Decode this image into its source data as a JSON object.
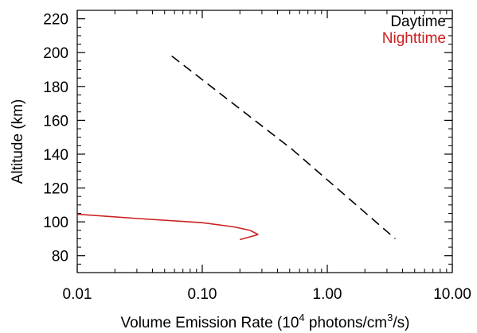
{
  "chart_data": {
    "type": "line",
    "x_scale": "log",
    "xlim": [
      0.01,
      10.0
    ],
    "ylim": [
      70,
      225
    ],
    "x_ticks": [
      0.01,
      0.1,
      1.0,
      10.0
    ],
    "x_tick_labels": [
      "0.01",
      "0.10",
      "1.00",
      "10.00"
    ],
    "y_ticks": [
      80,
      100,
      120,
      140,
      160,
      180,
      200,
      220
    ],
    "y_tick_labels": [
      "80",
      "100",
      "120",
      "140",
      "160",
      "180",
      "200",
      "220"
    ],
    "xlabel": {
      "prefix": "Volume Emission Rate (10",
      "exp1": "4",
      "middle": " photons/cm",
      "exp2": "3",
      "suffix": "/s)"
    },
    "ylabel": "Altitude (km)",
    "grid": false,
    "legend_position": "top-right",
    "series": [
      {
        "name": "Daytime",
        "color": "#000000",
        "points": [
          {
            "x": 0.057,
            "y": 198,
            "style": "dashed"
          },
          {
            "x": 0.52,
            "y": 143,
            "style": "dashed"
          },
          {
            "x": 3.5,
            "y": 90,
            "style": "solid"
          }
        ]
      },
      {
        "name": "Nighttime",
        "color": "#cc1f1f",
        "points": [
          {
            "x": 0.01,
            "y": 104.5
          },
          {
            "x": 0.03,
            "y": 102
          },
          {
            "x": 0.1,
            "y": 99.5
          },
          {
            "x": 0.18,
            "y": 97
          },
          {
            "x": 0.24,
            "y": 95
          },
          {
            "x": 0.28,
            "y": 92.5
          },
          {
            "x": 0.2,
            "y": 89.5
          }
        ]
      }
    ]
  }
}
